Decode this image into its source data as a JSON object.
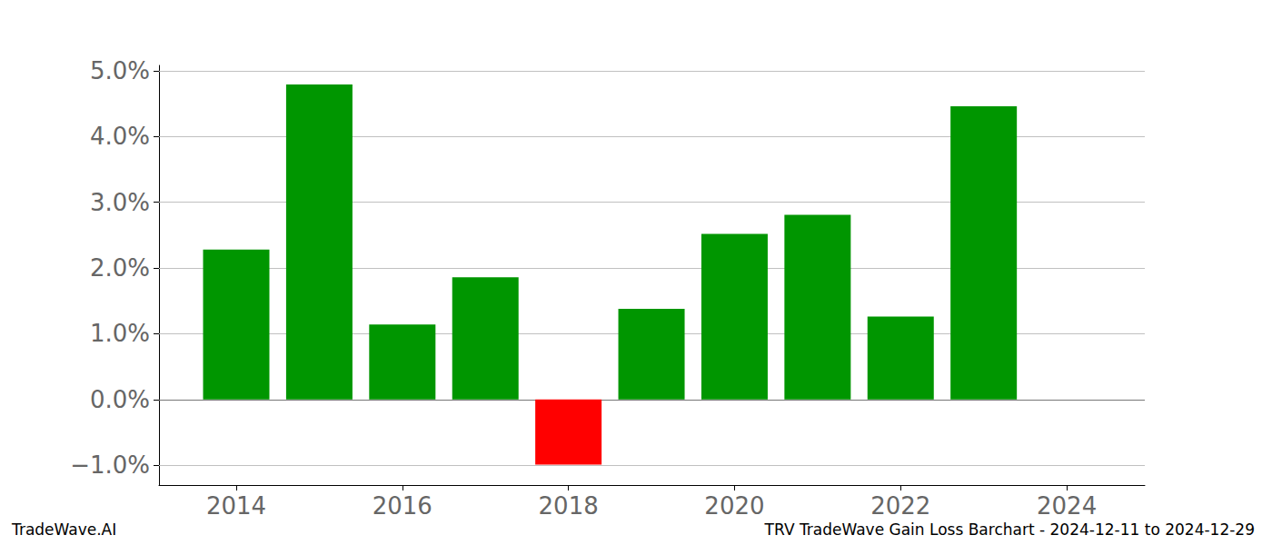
{
  "chart_data": {
    "type": "bar",
    "title": "TRV TradeWave Gain Loss Barchart - 2024-12-11 to 2024-12-29",
    "subtitle": "TradeWave.AI",
    "x": [
      2014,
      2015,
      2016,
      2017,
      2018,
      2019,
      2020,
      2021,
      2022,
      2023
    ],
    "values": [
      2.28,
      4.79,
      1.14,
      1.86,
      -0.99,
      1.38,
      2.52,
      2.81,
      1.26,
      4.46
    ],
    "colors": [
      "#009600",
      "#009600",
      "#009600",
      "#009600",
      "#ff0000",
      "#009600",
      "#009600",
      "#009600",
      "#009600",
      "#009600"
    ],
    "xlim": [
      2013.07,
      2024.94
    ],
    "xticks": [
      2014,
      2016,
      2018,
      2020,
      2022,
      2024
    ],
    "ylim": [
      -1.3,
      5.08
    ],
    "yticks": [
      {
        "value": -1,
        "label": "−1.0%"
      },
      {
        "value": 0,
        "label": "0.0%"
      },
      {
        "value": 1,
        "label": "1.0%"
      },
      {
        "value": 2,
        "label": "2.0%"
      },
      {
        "value": 3,
        "label": "3.0%"
      },
      {
        "value": 4,
        "label": "4.0%"
      },
      {
        "value": 5,
        "label": "5.0%"
      }
    ],
    "grid": true
  }
}
